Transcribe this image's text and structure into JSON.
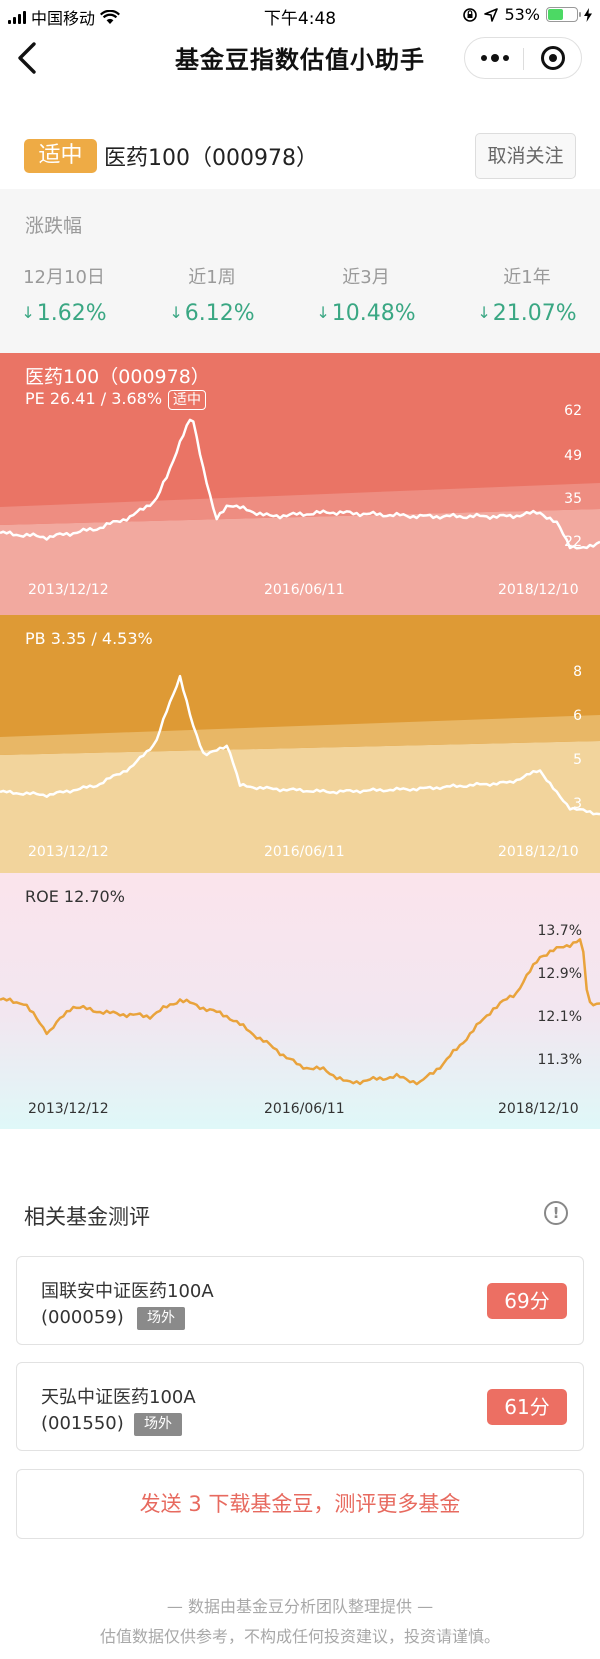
{
  "status_bar": {
    "carrier": "中国移动",
    "time": "下午4:48",
    "battery": "53%"
  },
  "nav": {
    "title": "基金豆指数估值小助手"
  },
  "header": {
    "valuation_badge": "适中",
    "index_name": "医药100（000978）",
    "unfollow_label": "取消关注"
  },
  "change": {
    "label": "涨跌幅",
    "items": [
      {
        "period": "12月10日",
        "value": "1.62%"
      },
      {
        "period": "近1周",
        "value": "6.12%"
      },
      {
        "period": "近3月",
        "value": "10.48%"
      },
      {
        "period": "近1年",
        "value": "21.07%"
      }
    ]
  },
  "colors": {
    "accent_orange": "#eeab45",
    "pe_bg": "#ea7465",
    "pb_bg": "#de9a35",
    "roe_line": "#e9a33c",
    "down_green": "#3aa783",
    "score_red": "#ec6f63"
  },
  "chart_data": [
    {
      "type": "area",
      "title": "医药100（000978）",
      "subtitle": "PE 26.41 / 3.68%",
      "badge": "适中",
      "y_ticks": [
        "62",
        "49",
        "35",
        "22"
      ],
      "x_ticks": [
        "2013/12/12",
        "2016/06/11",
        "2018/12/10"
      ],
      "x": [
        0,
        0.08,
        0.16,
        0.22,
        0.26,
        0.28,
        0.3,
        0.32,
        0.34,
        0.36,
        0.38,
        0.4,
        0.45,
        0.55,
        0.7,
        0.85,
        0.9,
        0.93,
        0.95,
        0.97,
        1
      ],
      "y": [
        30,
        29,
        31,
        34,
        38,
        44,
        52,
        58,
        45,
        33,
        37,
        36,
        34,
        35,
        34,
        34,
        35,
        32,
        27,
        26,
        28
      ],
      "ylim": [
        18,
        66
      ]
    },
    {
      "type": "area",
      "title": "PB 3.35 / 4.53%",
      "y_ticks": [
        "8",
        "6",
        "5",
        "3"
      ],
      "x_ticks": [
        "2013/12/12",
        "2016/06/11",
        "2018/12/10"
      ],
      "x": [
        0,
        0.08,
        0.16,
        0.22,
        0.26,
        0.28,
        0.3,
        0.32,
        0.34,
        0.36,
        0.38,
        0.4,
        0.45,
        0.55,
        0.7,
        0.85,
        0.9,
        0.93,
        0.95,
        0.97,
        1
      ],
      "y": [
        4.3,
        4.2,
        4.5,
        5.1,
        5.9,
        7.0,
        8.0,
        6.5,
        5.5,
        5.6,
        5.8,
        4.5,
        4.4,
        4.3,
        4.4,
        4.6,
        5.0,
        4.2,
        3.8,
        3.7,
        3.6
      ],
      "ylim": [
        2.6,
        9.0
      ]
    },
    {
      "type": "line",
      "title": "ROE 12.70%",
      "y_ticks": [
        "13.7%",
        "12.9%",
        "12.1%",
        "11.3%"
      ],
      "x_ticks": [
        "2013/12/12",
        "2016/06/11",
        "2018/12/10"
      ],
      "x": [
        0,
        0.04,
        0.08,
        0.12,
        0.18,
        0.25,
        0.3,
        0.38,
        0.42,
        0.46,
        0.5,
        0.54,
        0.58,
        0.62,
        0.66,
        0.7,
        0.74,
        0.78,
        0.82,
        0.86,
        0.9,
        0.94,
        0.97,
        0.98,
        1
      ],
      "y": [
        12.55,
        12.5,
        12.05,
        12.45,
        12.35,
        12.3,
        12.55,
        12.3,
        12.05,
        11.8,
        11.55,
        11.5,
        11.3,
        11.35,
        11.4,
        11.3,
        11.6,
        12.0,
        12.4,
        12.65,
        13.2,
        13.35,
        13.45,
        12.5,
        12.5
      ],
      "ylim": [
        11.0,
        14.0
      ]
    }
  ],
  "related": {
    "title": "相关基金测评",
    "funds": [
      {
        "name": "国联安中证医药100A",
        "code": "(000059)",
        "tag": "场外",
        "score": "69分"
      },
      {
        "name": "天弘中证医药100A",
        "code": "(001550)",
        "tag": "场外",
        "score": "61分"
      }
    ],
    "send_label": "发送 3 下载基金豆，测评更多基金"
  },
  "footer": {
    "line1": "— 数据由基金豆分析团队整理提供 —",
    "line2": "估值数据仅供参考，不构成任何投资建议，投资请谨慎。"
  },
  "icons": [
    "signal-icon",
    "wifi-icon",
    "lock-rotation-icon",
    "location-icon",
    "battery-icon",
    "charging-icon",
    "back-icon",
    "more-icon",
    "target-icon",
    "info-icon"
  ]
}
